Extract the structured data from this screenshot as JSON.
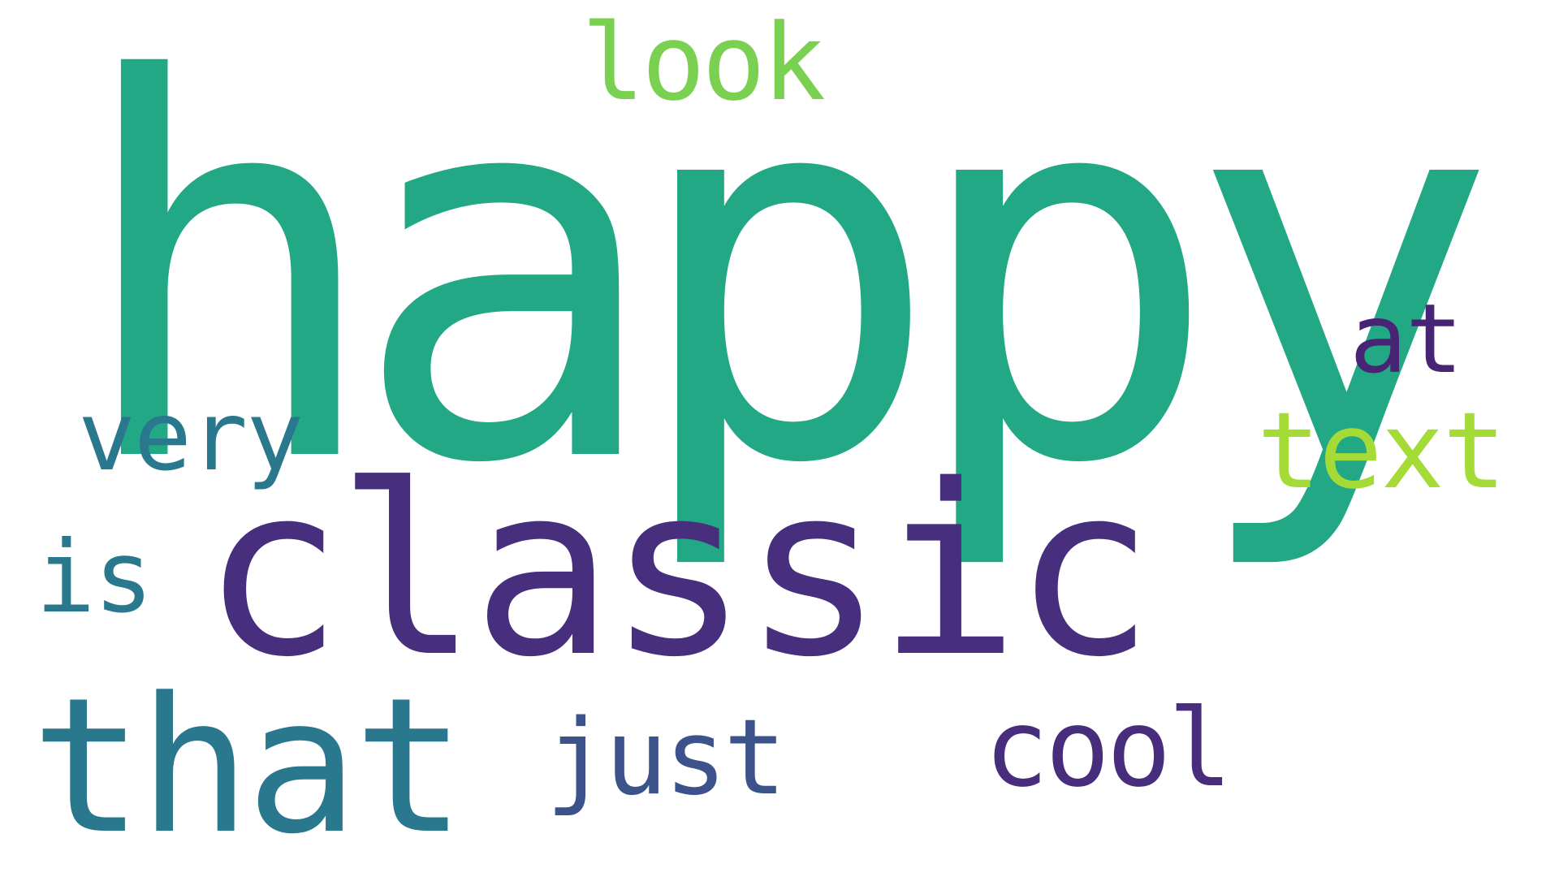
{
  "words": {
    "happy": {
      "text": "happy",
      "color": "#22a884"
    },
    "classic": {
      "text": "classic",
      "color": "#472f7d"
    },
    "that": {
      "text": "that",
      "color": "#2a788e"
    },
    "look": {
      "text": "look",
      "color": "#7ad151"
    },
    "very": {
      "text": "very",
      "color": "#2a788e"
    },
    "at": {
      "text": "at",
      "color": "#482475"
    },
    "text": {
      "text": "text",
      "color": "#a5db36"
    },
    "is": {
      "text": "is",
      "color": "#2a788e"
    },
    "just": {
      "text": "just",
      "color": "#3b528b"
    },
    "cool": {
      "text": "cool",
      "color": "#472d7b"
    }
  }
}
